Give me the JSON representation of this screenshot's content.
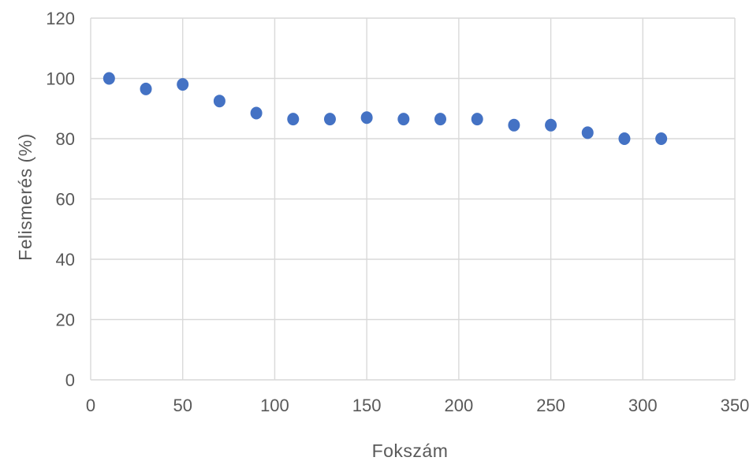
{
  "chart_data": {
    "type": "scatter",
    "title": "",
    "xlabel": "Fokszám",
    "ylabel": "Felismerés (%)",
    "xlim": [
      0,
      350
    ],
    "ylim": [
      0,
      120
    ],
    "xticks": [
      "0",
      "50",
      "100",
      "150",
      "200",
      "250",
      "300",
      "350"
    ],
    "yticks": [
      "0",
      "20",
      "40",
      "60",
      "80",
      "100",
      "120"
    ],
    "grid": true,
    "legend": "none",
    "marker_color": "#4472C4",
    "series": [
      {
        "x": [
          10,
          30,
          50,
          70,
          90,
          110,
          130,
          150,
          170,
          190,
          210,
          230,
          250,
          270,
          290,
          310
        ],
        "y": [
          100,
          96.5,
          98,
          92.5,
          88.5,
          86.5,
          86.5,
          87,
          86.5,
          86.5,
          86.5,
          84.5,
          84.5,
          82,
          80,
          80
        ]
      }
    ]
  }
}
